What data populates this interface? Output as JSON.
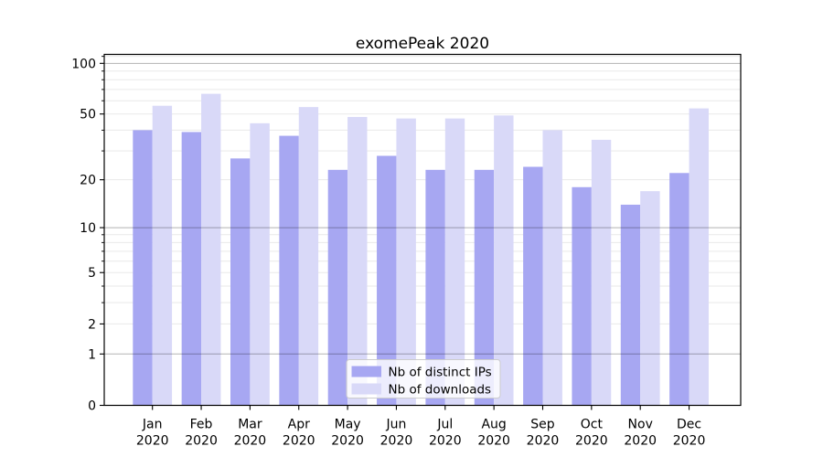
{
  "figure": {
    "title": "exomePeak 2020"
  },
  "chart_data": {
    "type": "bar",
    "title": "exomePeak 2020",
    "yscale": "log1p",
    "ylim": [
      0,
      113
    ],
    "grid": "horizontal",
    "legend_position": "lower center",
    "months": [
      "Jan",
      "Feb",
      "Mar",
      "Apr",
      "May",
      "Jun",
      "Jul",
      "Aug",
      "Sep",
      "Oct",
      "Nov",
      "Dec"
    ],
    "year_label": "2020",
    "series": [
      {
        "name": "Nb of distinct IPs",
        "color": "#a7a7f2",
        "values": [
          40,
          39,
          27,
          37,
          23,
          28,
          23,
          23,
          24,
          18,
          14,
          22
        ]
      },
      {
        "name": "Nb of downloads",
        "color": "#d9d9f8",
        "values": [
          56,
          66,
          44,
          55,
          48,
          47,
          47,
          49,
          40,
          35,
          17,
          54
        ]
      }
    ],
    "ytick_values": [
      100,
      50,
      20,
      10,
      5,
      2,
      1,
      0
    ],
    "ytick_labels": [
      "100",
      "50",
      "20",
      "10",
      "5",
      "2",
      "1",
      "0"
    ],
    "minor_grid_values": [
      2,
      3,
      4,
      5,
      6,
      7,
      8,
      9,
      20,
      30,
      40,
      50,
      60,
      70,
      80,
      90,
      110
    ],
    "major_grid_values": [
      1,
      10,
      100
    ],
    "colors": {
      "axis": "#000000",
      "text": "#000000",
      "minor_grid": "#e9e9e9",
      "major_grid_overlay": "rgba(0,0,0,0.30)",
      "legend_border": "#cccccc",
      "legend_bg": "rgba(255,255,255,0.8)"
    }
  }
}
